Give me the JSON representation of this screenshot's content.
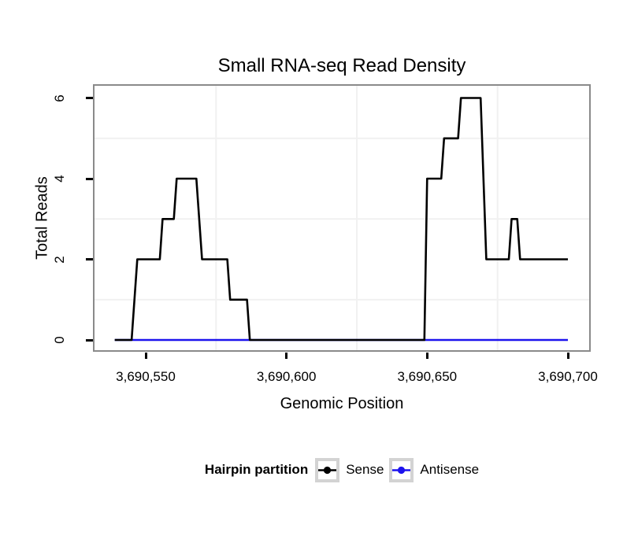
{
  "chart_data": {
    "type": "line",
    "title": "Small RNA-seq Read Density",
    "xlabel": "Genomic Position",
    "ylabel": "Total Reads",
    "xlim": [
      3690531,
      3690708
    ],
    "ylim": [
      -0.3,
      6.3
    ],
    "grid": "minor-only",
    "x_ticks": [
      {
        "pos": 3690550,
        "label": "3,690,550"
      },
      {
        "pos": 3690600,
        "label": "3,690,600"
      },
      {
        "pos": 3690650,
        "label": "3,690,650"
      },
      {
        "pos": 3690700,
        "label": "3,690,700"
      }
    ],
    "y_ticks": [
      {
        "value": 0,
        "label": "0"
      },
      {
        "value": 2,
        "label": "2"
      },
      {
        "value": 4,
        "label": "4"
      },
      {
        "value": 6,
        "label": "6"
      }
    ],
    "grid_minor_x": [
      3690575,
      3690625,
      3690675
    ],
    "grid_minor_y": [
      1,
      3,
      5
    ],
    "legend_title": "Hairpin partition",
    "legend_position": "bottom",
    "series": [
      {
        "name": "Sense",
        "color": "#000000",
        "points": [
          [
            3690539,
            0
          ],
          [
            3690545,
            0
          ],
          [
            3690547,
            2
          ],
          [
            3690555,
            2
          ],
          [
            3690556,
            3
          ],
          [
            3690560,
            3
          ],
          [
            3690561,
            4
          ],
          [
            3690568,
            4
          ],
          [
            3690570,
            2
          ],
          [
            3690579,
            2
          ],
          [
            3690580,
            1
          ],
          [
            3690586,
            1
          ],
          [
            3690587,
            0
          ],
          [
            3690649,
            0
          ],
          [
            3690650,
            4
          ],
          [
            3690655,
            4
          ],
          [
            3690656,
            5
          ],
          [
            3690661,
            5
          ],
          [
            3690662,
            6
          ],
          [
            3690669,
            6
          ],
          [
            3690671,
            2
          ],
          [
            3690679,
            2
          ],
          [
            3690680,
            3
          ],
          [
            3690682,
            3
          ],
          [
            3690683,
            2
          ],
          [
            3690700,
            2
          ]
        ]
      },
      {
        "name": "Antisense",
        "color": "#1d13ee",
        "points": [
          [
            3690539,
            0
          ],
          [
            3690700,
            0
          ]
        ]
      }
    ],
    "colors": {
      "panel_border": "#8a8a8a",
      "grid_minor": "#f1f1f1",
      "tick": "#000000",
      "legend_key_border": "#d3d3d3"
    }
  }
}
